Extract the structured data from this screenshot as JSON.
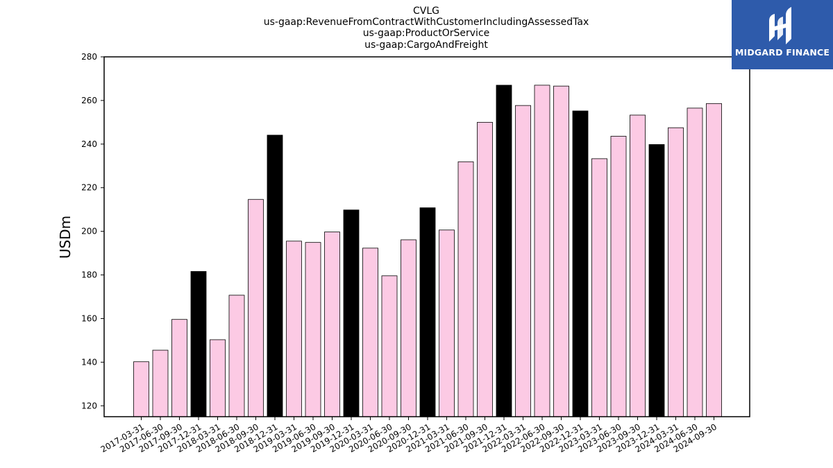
{
  "chart_data": {
    "type": "bar",
    "title_lines": [
      "CVLG",
      "us-gaap:RevenueFromContractWithCustomerIncludingAssessedTax",
      "us-gaap:ProductOrService",
      "us-gaap:CargoAndFreight"
    ],
    "xlabel": "",
    "ylabel": "USDm",
    "ylim": [
      115,
      280
    ],
    "yticks": [
      120,
      140,
      160,
      180,
      200,
      220,
      240,
      260,
      280
    ],
    "grid": false,
    "categories": [
      "2017-03-31",
      "2017-06-30",
      "2017-09-30",
      "2017-12-31",
      "2018-03-31",
      "2018-06-30",
      "2018-09-30",
      "2018-12-31",
      "2019-03-31",
      "2019-06-30",
      "2019-09-30",
      "2019-12-31",
      "2020-03-31",
      "2020-06-30",
      "2020-09-30",
      "2020-12-31",
      "2021-03-31",
      "2021-06-30",
      "2021-09-30",
      "2021-12-31",
      "2022-03-31",
      "2022-06-30",
      "2022-09-30",
      "2022-12-31",
      "2023-03-31",
      "2023-06-30",
      "2023-09-30",
      "2023-12-31",
      "2024-03-31",
      "2024-06-30",
      "2024-09-30"
    ],
    "values": [
      140.2,
      145.5,
      159.6,
      181.6,
      150.3,
      170.7,
      214.6,
      244.1,
      195.5,
      194.9,
      199.7,
      209.8,
      192.3,
      179.6,
      196.1,
      210.8,
      200.6,
      231.9,
      250.0,
      267.0,
      257.7,
      267.0,
      266.6,
      255.2,
      233.3,
      243.6,
      253.3,
      239.8,
      247.5,
      256.5,
      258.6
    ],
    "bar_colors": {
      "quarter": "#fccae4",
      "year_end": "#000000",
      "edge": "#000000"
    }
  },
  "logo": {
    "text": "MIDGARD FINANCE",
    "background": "#2e5bab",
    "foreground": "#ffffff"
  }
}
